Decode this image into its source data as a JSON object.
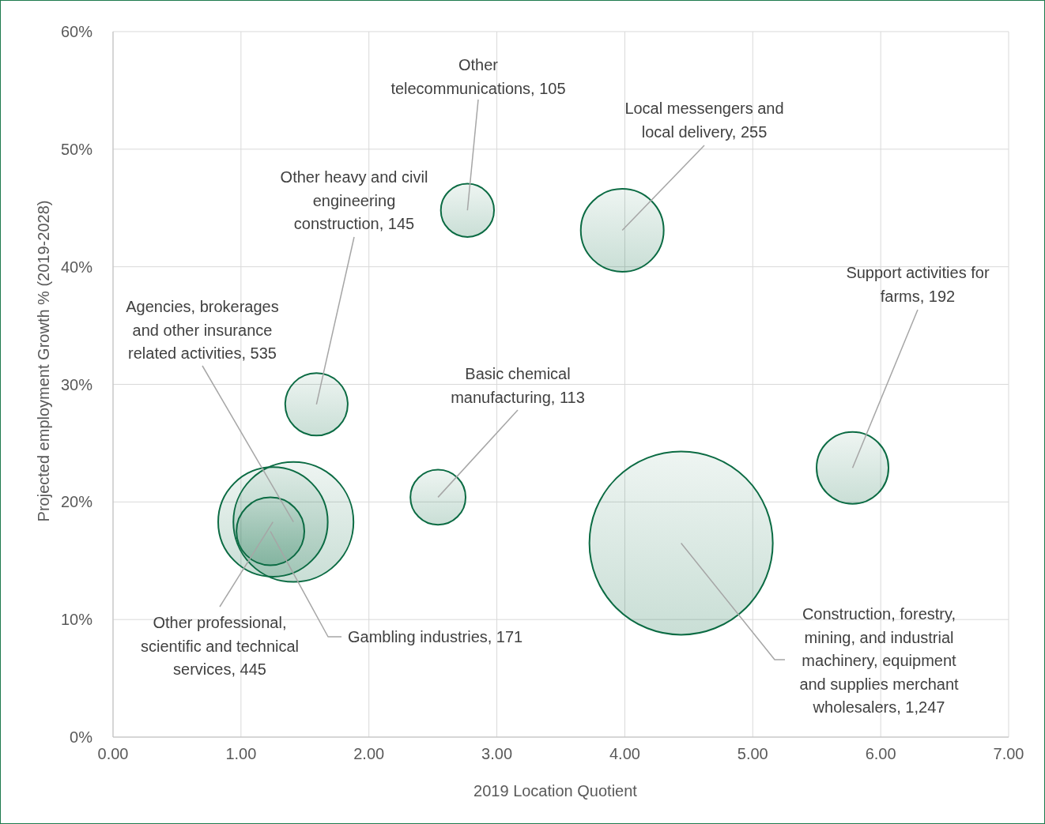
{
  "chart_data": {
    "type": "bubble",
    "xlabel": "2019 Location Quotient",
    "ylabel": "Projected employment Growth % (2019-2028)",
    "x": [
      2.77,
      3.98,
      1.59,
      1.41,
      1.25,
      1.23,
      2.54,
      5.78,
      4.44
    ],
    "values": [
      44.8,
      43.1,
      28.3,
      18.3,
      18.3,
      17.5,
      20.4,
      22.9,
      16.5
    ],
    "sizes": [
      105,
      255,
      145,
      535,
      445,
      171,
      113,
      192,
      1247
    ],
    "value_labels": [
      "Other telecommunications, 105",
      "Local messengers and local delivery, 255",
      "Other heavy and civil engineering construction, 145",
      "Agencies, brokerages and other insurance related activities, 535",
      "Other professional, scientific and technical services, 445",
      "Gambling industries, 171",
      "Basic chemical manufacturing, 113",
      "Support activities for farms, 192",
      "Construction, forestry, mining, and industrial machinery, equipment and supplies merchant wholesalers, 1,247"
    ],
    "color": "#0b6b43",
    "xlim": [
      0,
      7
    ],
    "xticks": [
      {
        "value": 0,
        "label": "0.00"
      },
      {
        "value": 1,
        "label": "1.00"
      },
      {
        "value": 2,
        "label": "2.00"
      },
      {
        "value": 3,
        "label": "3.00"
      },
      {
        "value": 4,
        "label": "4.00"
      },
      {
        "value": 5,
        "label": "5.00"
      },
      {
        "value": 6,
        "label": "6.00"
      },
      {
        "value": 7,
        "label": "7.00"
      }
    ],
    "ylim": [
      0,
      60
    ],
    "yticks": [
      {
        "value": 0,
        "label": "0%"
      },
      {
        "value": 10,
        "label": "10%"
      },
      {
        "value": 20,
        "label": "20%"
      },
      {
        "value": 30,
        "label": "30%"
      },
      {
        "value": 40,
        "label": "40%"
      },
      {
        "value": 50,
        "label": "50%"
      },
      {
        "value": 60,
        "label": "60%"
      }
    ],
    "grid": true,
    "legend": false
  }
}
